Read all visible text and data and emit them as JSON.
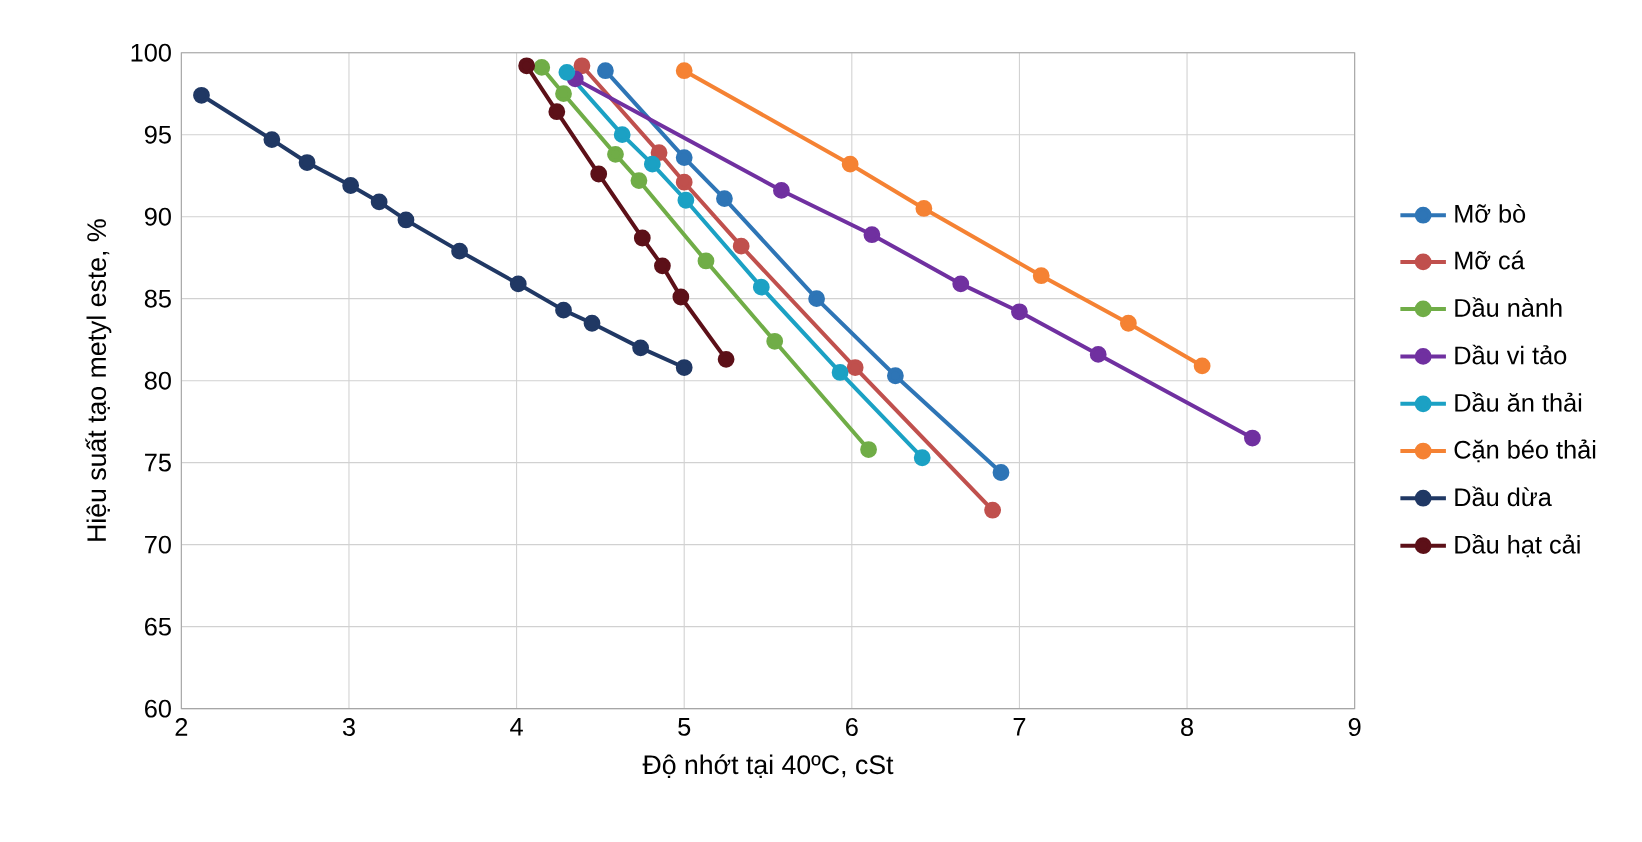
{
  "chart_data": {
    "type": "line",
    "xlabel": "Độ nhớt tại 40ºC, cSt",
    "ylabel": "Hiệu suất tạo metyl este, %",
    "xlim": [
      2,
      9
    ],
    "xticks": [
      2,
      3,
      4,
      5,
      6,
      7,
      8,
      9
    ],
    "ylim": [
      60,
      100
    ],
    "yticks": [
      60,
      65,
      70,
      75,
      80,
      85,
      90,
      95,
      100
    ],
    "grid": true,
    "legend": "right",
    "marker": "circle",
    "line_style": "solid",
    "series": [
      {
        "name": "Mỡ bò",
        "color": "#2e75b6",
        "x": [
          4.53,
          5.0,
          5.24,
          5.79,
          6.26,
          6.89
        ],
        "values": [
          98.9,
          93.6,
          91.1,
          85.0,
          80.3,
          74.4
        ]
      },
      {
        "name": "Mỡ cá",
        "color": "#c0504d",
        "x": [
          4.39,
          4.85,
          5.0,
          5.34,
          6.02,
          6.84
        ],
        "values": [
          99.2,
          93.9,
          92.1,
          88.2,
          80.8,
          72.1
        ]
      },
      {
        "name": "Dầu nành",
        "color": "#70ad47",
        "x": [
          4.15,
          4.28,
          4.59,
          4.73,
          5.13,
          5.54,
          6.1
        ],
        "values": [
          99.1,
          97.5,
          93.8,
          92.2,
          87.3,
          82.4,
          75.8
        ]
      },
      {
        "name": "Dầu vi tảo",
        "color": "#7030a0",
        "x": [
          4.35,
          5.58,
          6.12,
          6.65,
          7.0,
          7.47,
          8.39
        ],
        "values": [
          98.4,
          91.6,
          88.9,
          85.9,
          84.2,
          81.6,
          76.5
        ]
      },
      {
        "name": "Dầu ăn thải",
        "color": "#1ba1c4",
        "x": [
          4.3,
          4.63,
          4.81,
          5.01,
          5.46,
          5.93,
          6.42
        ],
        "values": [
          98.8,
          95.0,
          93.2,
          91.0,
          85.7,
          80.5,
          75.3
        ]
      },
      {
        "name": "Cặn béo thải",
        "color": "#f58233",
        "x": [
          5.0,
          5.99,
          6.43,
          7.13,
          7.65,
          8.09
        ],
        "values": [
          98.9,
          93.2,
          90.5,
          86.4,
          83.5,
          80.9
        ]
      },
      {
        "name": "Dầu dừa",
        "color": "#203864",
        "x": [
          2.12,
          2.54,
          2.75,
          3.01,
          3.18,
          3.34,
          3.66,
          4.01,
          4.28,
          4.45,
          4.74,
          5.0
        ],
        "values": [
          97.4,
          94.7,
          93.3,
          91.9,
          90.9,
          89.8,
          87.9,
          85.9,
          84.3,
          83.5,
          82.0,
          80.8
        ]
      },
      {
        "name": "Dầu hạt cải",
        "color": "#5c1018",
        "x": [
          4.06,
          4.24,
          4.49,
          4.75,
          4.87,
          4.98,
          5.25
        ],
        "values": [
          99.2,
          96.4,
          92.6,
          88.7,
          87.0,
          85.1,
          81.3
        ]
      }
    ]
  }
}
